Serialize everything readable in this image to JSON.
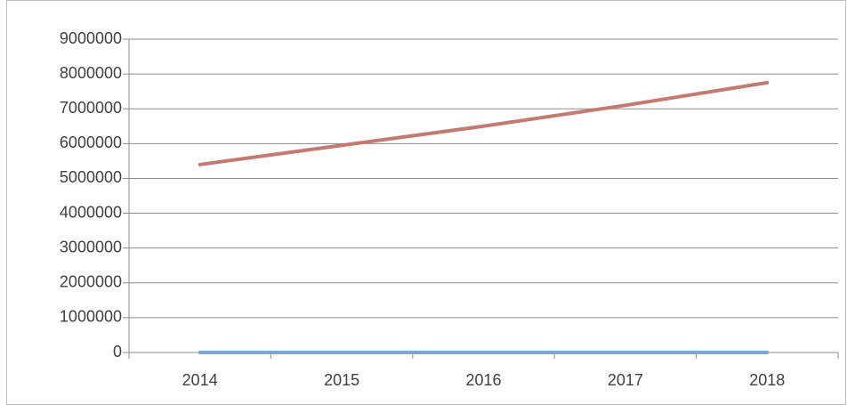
{
  "chart_data": {
    "type": "line",
    "categories": [
      "2014",
      "2015",
      "2016",
      "2017",
      "2018"
    ],
    "series": [
      {
        "color": "#7ea6cf",
        "values": [
          0,
          0,
          0,
          0,
          0
        ]
      },
      {
        "color": "#c27a72",
        "values": [
          5400000,
          5950000,
          6500000,
          7100000,
          7750000
        ]
      }
    ],
    "ylim": [
      0,
      9000000
    ],
    "yticks": [
      0,
      1000000,
      2000000,
      3000000,
      4000000,
      5000000,
      6000000,
      7000000,
      8000000,
      9000000
    ],
    "grid": true
  }
}
